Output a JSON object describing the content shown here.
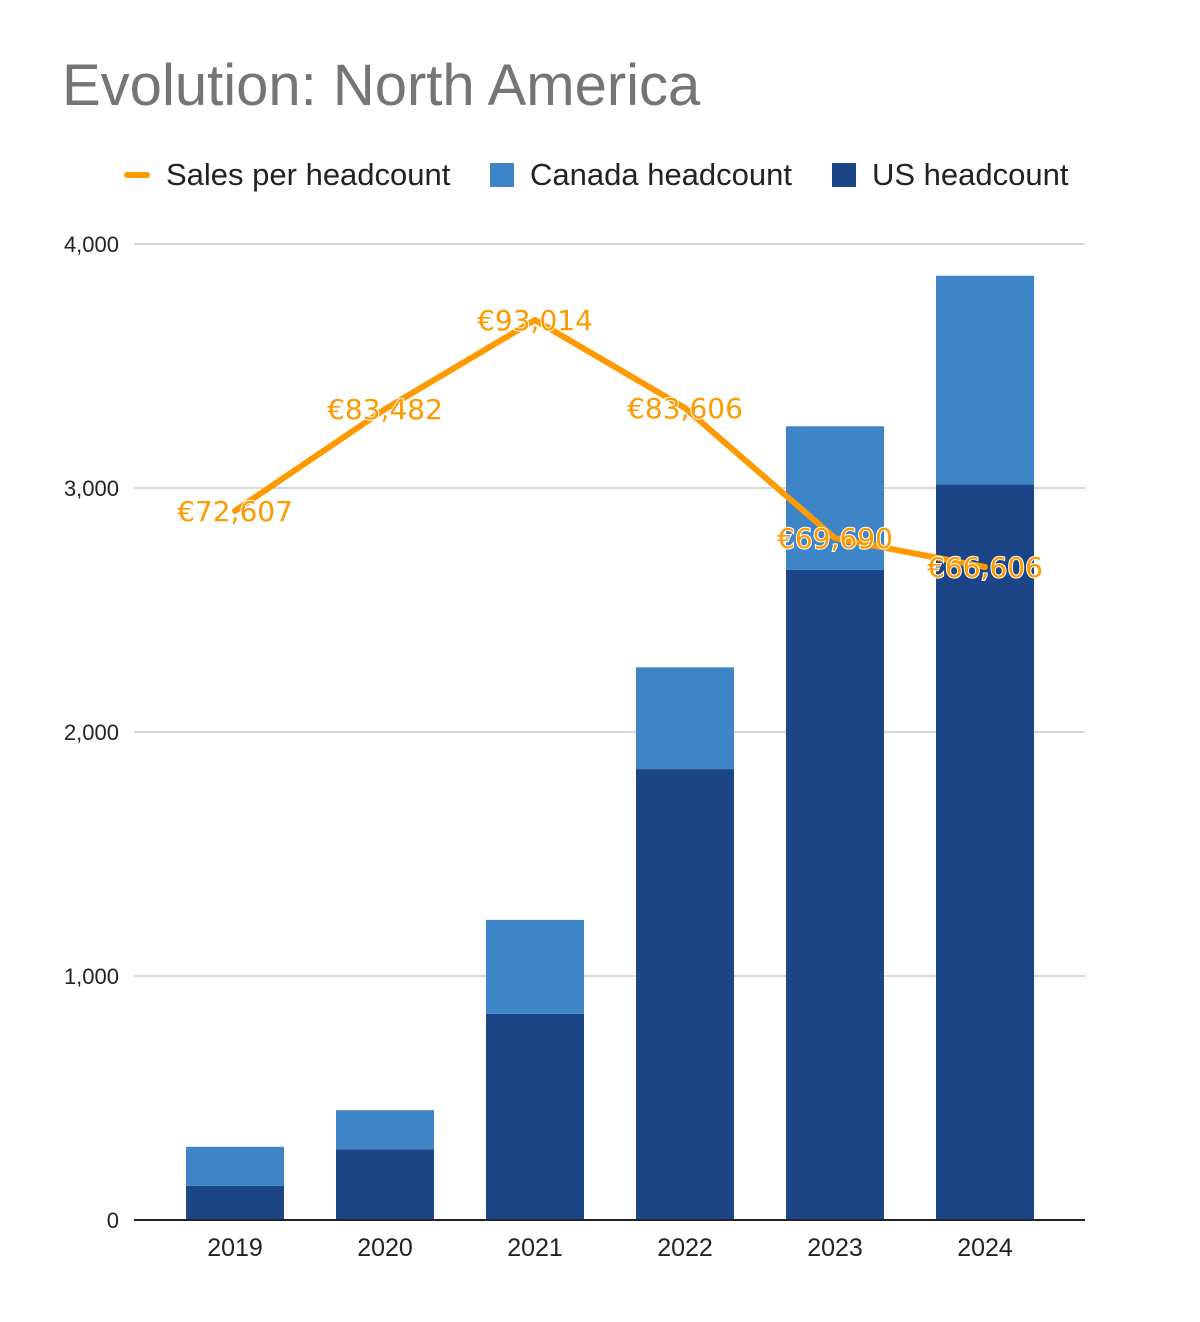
{
  "colors": {
    "sales": "#ff9900",
    "canada": "#3d85c6",
    "us": "#1c4587",
    "grid": "#cccccc",
    "axis": "#222222",
    "title": "#757575"
  },
  "chart_data": {
    "type": "bar",
    "stacked": true,
    "title": "Evolution: North America",
    "xlabel": "",
    "ylabel": "",
    "ylim": [
      0,
      4000
    ],
    "yticks": [
      0,
      1000,
      2000,
      3000,
      4000
    ],
    "ytick_labels": [
      "0",
      "1,000",
      "2,000",
      "3,000",
      "4,000"
    ],
    "categories": [
      "2019",
      "2020",
      "2021",
      "2022",
      "2023",
      "2024"
    ],
    "legend_position": "top",
    "grid": true,
    "series": [
      {
        "name": "US headcount",
        "kind": "bar",
        "color": "#1c4587",
        "values": [
          140,
          290,
          845,
          1848,
          2665,
          3015
        ]
      },
      {
        "name": "Canada headcount",
        "kind": "bar",
        "color": "#3d85c6",
        "values": [
          160,
          160,
          385,
          417,
          588,
          855
        ]
      },
      {
        "name": "Sales per headcount",
        "kind": "line",
        "color": "#ff9900",
        "axis": "secondary-hidden",
        "values": [
          72607,
          83482,
          93014,
          83606,
          69690,
          66606
        ],
        "labels": [
          "€72,607",
          "€83,482",
          "€93,014",
          "€83,606",
          "€69,690",
          "€66,606"
        ]
      }
    ],
    "legend": [
      "Sales per headcount",
      "Canada headcount",
      "US headcount"
    ]
  }
}
